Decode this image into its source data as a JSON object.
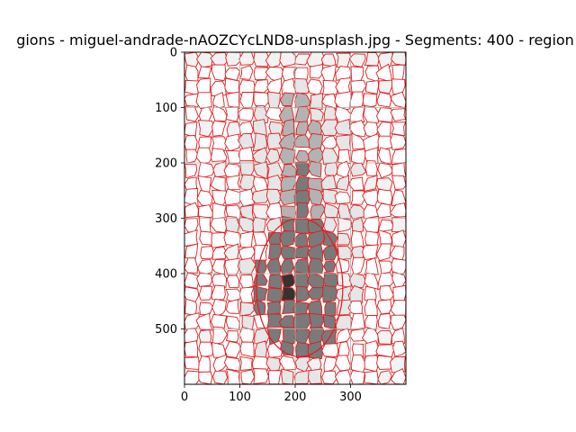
{
  "chart_data": {
    "type": "heatmap",
    "title": "gions - miguel-andrade-nAOZCYcLND8-unsplash.jpg - Segments: 400 - region",
    "xlabel": "",
    "ylabel": "",
    "xlim": [
      0,
      400
    ],
    "ylim": [
      600,
      0
    ],
    "x_ticks": [
      0,
      100,
      200,
      300
    ],
    "y_ticks": [
      0,
      100,
      200,
      300,
      400,
      500
    ],
    "x_tick_labels": [
      "0",
      "100",
      "200",
      "300"
    ],
    "y_tick_labels": [
      "0",
      "100",
      "200",
      "300",
      "400",
      "500"
    ],
    "grid": true,
    "image_size": [
      400,
      600
    ],
    "segments": 400,
    "boundary_color": "#e41a1c",
    "grid_color": "#b0b0b0",
    "background_color": "#ffffff",
    "light_region_color": "#e6e6e6",
    "mid_region_color": "#b3b3b3",
    "dark_region_color": "#7a7a7a",
    "darkest_region_color": "#333333"
  }
}
